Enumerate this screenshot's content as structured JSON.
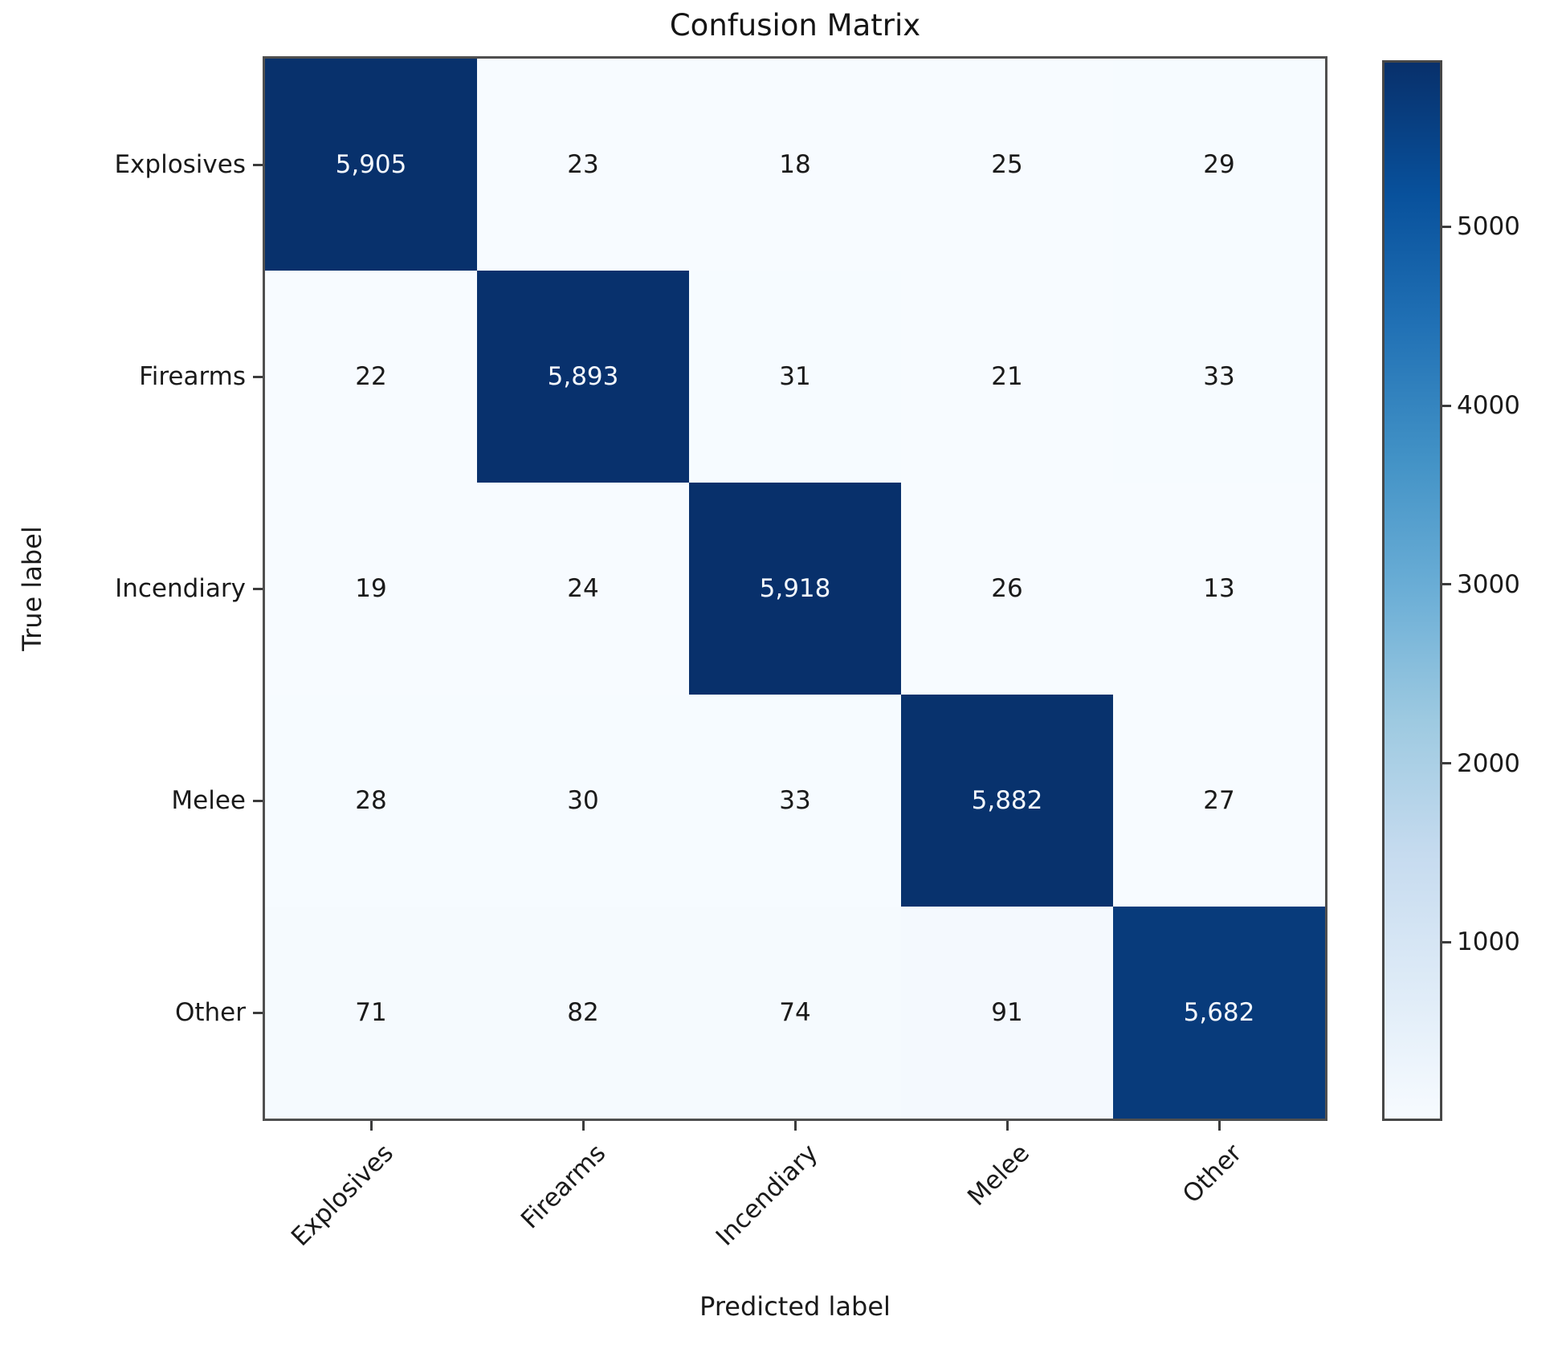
{
  "title": "Confusion Matrix",
  "chart_data": {
    "type": "heatmap",
    "title": "Confusion Matrix",
    "xlabel": "Predicted label",
    "ylabel": "True label",
    "x_tick_labels": [
      "Explosives",
      "Firearms",
      "Incendiary",
      "Melee",
      "Other"
    ],
    "y_tick_labels": [
      "Explosives",
      "Firearms",
      "Incendiary",
      "Melee",
      "Other"
    ],
    "matrix": [
      [
        5905,
        23,
        18,
        25,
        29
      ],
      [
        22,
        5893,
        31,
        21,
        33
      ],
      [
        19,
        24,
        5918,
        26,
        13
      ],
      [
        28,
        30,
        33,
        5882,
        27
      ],
      [
        71,
        82,
        74,
        91,
        5682
      ]
    ],
    "colormap": "Blues",
    "vmin": 13,
    "vmax": 5918,
    "colorbar_ticks": [
      1000,
      2000,
      3000,
      4000,
      5000
    ],
    "legend_position": "right-colorbar",
    "grid": false
  },
  "colors": {
    "accent_dark_cell": "#08306b",
    "light_cell": "#f4f8fd",
    "cell_text_dark": "#1a1a1a",
    "cell_text_light": "#f4f8fd",
    "gradient_stops": [
      "#f7fbff",
      "#deebf7",
      "#c6dbef",
      "#9ecae1",
      "#6baed6",
      "#4292c6",
      "#2171b5",
      "#08519c",
      "#08306b"
    ]
  }
}
